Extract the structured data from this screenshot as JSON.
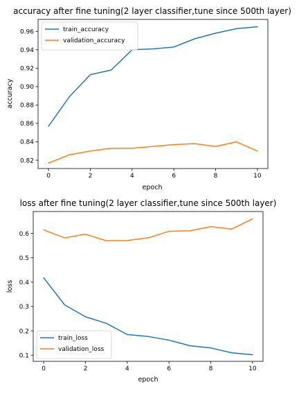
{
  "chart_data": [
    {
      "type": "line",
      "title": "accuracy after fine tuning(2 layer classifier,tune since 500th layer)",
      "xlabel": "epoch",
      "ylabel": "accuracy",
      "x": [
        0,
        1,
        2,
        3,
        4,
        5,
        6,
        7,
        8,
        9,
        10
      ],
      "xlim": [
        -0.5,
        10.5
      ],
      "ylim": [
        0.811,
        0.973
      ],
      "xticks": [
        0,
        2,
        4,
        6,
        8,
        10
      ],
      "yticks": [
        0.82,
        0.84,
        0.86,
        0.88,
        0.9,
        0.92,
        0.94,
        0.96
      ],
      "ytick_labels": [
        "0.82",
        "0.84",
        "0.86",
        "0.88",
        "0.90",
        "0.92",
        "0.94",
        "0.96"
      ],
      "grid": false,
      "legend_position": "top-left",
      "series": [
        {
          "name": "train_accuracy",
          "color": "#1f77b4",
          "values": [
            0.857,
            0.889,
            0.913,
            0.918,
            0.94,
            0.941,
            0.943,
            0.952,
            0.958,
            0.963,
            0.965
          ]
        },
        {
          "name": "validation_accuracy",
          "color": "#ff7f0e",
          "values": [
            0.817,
            0.826,
            0.83,
            0.833,
            0.833,
            0.835,
            0.837,
            0.838,
            0.835,
            0.84,
            0.83
          ]
        }
      ]
    },
    {
      "type": "line",
      "title": "loss after fine tuning(2 layer classifier,tune since 500th layer)",
      "xlabel": "epoch",
      "ylabel": "loss",
      "x": [
        0,
        1,
        2,
        3,
        4,
        5,
        6,
        7,
        8,
        9,
        10
      ],
      "xlim": [
        -0.5,
        10.5
      ],
      "ylim": [
        0.075,
        0.69
      ],
      "xticks": [
        0,
        2,
        4,
        6,
        8,
        10
      ],
      "yticks": [
        0.1,
        0.2,
        0.3,
        0.4,
        0.5,
        0.6
      ],
      "ytick_labels": [
        "0.1",
        "0.2",
        "0.3",
        "0.4",
        "0.5",
        "0.6"
      ],
      "grid": false,
      "legend_position": "bottom-left",
      "series": [
        {
          "name": "train_loss",
          "color": "#1f77b4",
          "values": [
            0.418,
            0.307,
            0.258,
            0.231,
            0.185,
            0.177,
            0.162,
            0.139,
            0.13,
            0.11,
            0.102
          ]
        },
        {
          "name": "validation_loss",
          "color": "#ff7f0e",
          "values": [
            0.615,
            0.582,
            0.597,
            0.57,
            0.571,
            0.582,
            0.609,
            0.611,
            0.628,
            0.618,
            0.66
          ]
        }
      ]
    }
  ]
}
